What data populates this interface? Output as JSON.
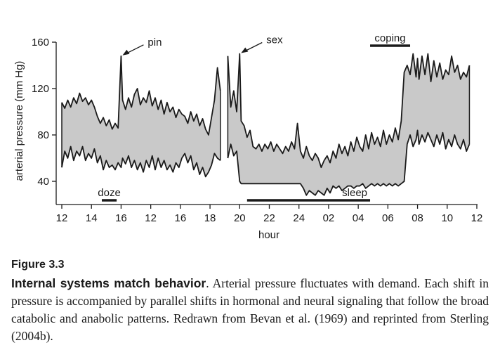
{
  "chart_data": {
    "type": "area",
    "ylabel": "arterial pressure (mm Hg)",
    "xlabel": "hour",
    "ylim": [
      20,
      165
    ],
    "yticks": [
      40,
      80,
      120,
      160
    ],
    "xticks": [
      "12",
      "14",
      "16",
      "12",
      "16",
      "18",
      "20",
      "22",
      "24",
      "02",
      "04",
      "06",
      "08",
      "10",
      "12"
    ],
    "segments": [
      {
        "x": [
          0,
          0.2,
          0.4,
          0.6,
          0.8,
          1.0,
          1.2,
          1.4,
          1.6,
          1.8,
          2.0,
          2.2,
          2.4,
          2.6,
          2.8,
          3.0,
          3.2,
          3.4,
          3.6,
          3.8,
          4.0,
          4.1,
          4.3,
          4.5,
          4.7,
          4.9,
          5.1,
          5.3,
          5.5,
          5.7,
          5.9,
          6.1,
          6.3,
          6.5,
          6.7,
          6.9,
          7.1,
          7.3,
          7.5,
          7.7,
          7.9,
          8.1,
          8.3,
          8.5,
          8.7,
          8.9,
          9.1,
          9.3,
          9.5,
          9.7,
          9.9,
          10.1,
          10.3,
          10.5,
          10.7
        ],
        "systolic": [
          108,
          103,
          110,
          104,
          112,
          107,
          116,
          109,
          112,
          106,
          110,
          104,
          96,
          90,
          95,
          88,
          93,
          85,
          90,
          86,
          148,
          110,
          102,
          112,
          104,
          115,
          120,
          106,
          112,
          108,
          118,
          105,
          112,
          102,
          110,
          98,
          108,
          100,
          104,
          95,
          102,
          98,
          96,
          90,
          100,
          92,
          98,
          88,
          94,
          85,
          80,
          95,
          110,
          138,
          118
        ],
        "diastolic": [
          52,
          66,
          60,
          70,
          58,
          66,
          62,
          70,
          58,
          64,
          60,
          68,
          56,
          62,
          50,
          58,
          52,
          54,
          50,
          56,
          52,
          60,
          55,
          62,
          52,
          58,
          50,
          56,
          48,
          58,
          52,
          62,
          50,
          60,
          52,
          58,
          50,
          54,
          48,
          56,
          52,
          60,
          64,
          56,
          62,
          50,
          56,
          46,
          52,
          44,
          48,
          54,
          64,
          60,
          58
        ]
      },
      {
        "x": [
          11.2,
          11.4,
          11.6,
          11.8,
          12.0,
          12.1,
          12.3,
          12.5,
          12.7,
          12.9,
          13.1,
          13.3,
          13.5,
          13.7,
          13.9,
          14.1,
          14.3,
          14.5,
          14.7,
          14.9,
          15.1,
          15.3,
          15.5,
          15.7,
          15.9,
          16.1,
          16.3,
          16.5,
          16.7,
          16.9,
          17.1,
          17.3,
          17.5,
          17.7,
          17.9,
          18.1,
          18.3,
          18.5,
          18.7,
          18.9,
          19.1,
          19.3,
          19.5,
          19.7,
          19.9,
          20.1,
          20.3,
          20.5,
          20.7,
          20.9,
          21.1,
          21.3,
          21.5,
          21.7,
          21.9,
          22.1,
          22.3,
          22.5,
          22.7,
          22.9,
          23.1,
          23.3,
          23.5,
          23.7,
          23.9,
          24.0,
          24.1,
          24.3,
          24.5,
          24.7,
          24.9,
          25.1,
          25.3,
          25.5,
          25.7,
          25.9,
          26.1,
          26.3,
          26.5,
          26.7,
          26.9,
          27.1,
          27.3,
          27.5
        ],
        "systolic": [
          148,
          104,
          118,
          100,
          150,
          92,
          88,
          78,
          84,
          70,
          68,
          72,
          66,
          72,
          68,
          74,
          66,
          72,
          68,
          64,
          70,
          66,
          74,
          68,
          90,
          66,
          60,
          70,
          62,
          58,
          64,
          60,
          52,
          58,
          62,
          56,
          66,
          60,
          72,
          64,
          70,
          62,
          74,
          66,
          78,
          70,
          66,
          80,
          68,
          82,
          72,
          78,
          70,
          84,
          72,
          80,
          74,
          86,
          76,
          92,
          134,
          140,
          132,
          150,
          130,
          146,
          128,
          148,
          132,
          150,
          126,
          144,
          130,
          142,
          128,
          136,
          132,
          148,
          134,
          140,
          128,
          134,
          130,
          140
        ],
        "diastolic": [
          60,
          72,
          62,
          66,
          40,
          38,
          38,
          38,
          38,
          38,
          38,
          38,
          38,
          38,
          38,
          38,
          38,
          38,
          38,
          38,
          38,
          38,
          38,
          38,
          38,
          38,
          34,
          28,
          32,
          30,
          28,
          32,
          30,
          28,
          34,
          30,
          36,
          34,
          36,
          32,
          34,
          36,
          36,
          34,
          36,
          36,
          38,
          34,
          36,
          38,
          36,
          38,
          36,
          38,
          36,
          38,
          36,
          38,
          36,
          38,
          40,
          72,
          80,
          70,
          76,
          84,
          72,
          80,
          74,
          82,
          76,
          70,
          80,
          72,
          82,
          68,
          76,
          70,
          80,
          72,
          68,
          76,
          66,
          72
        ]
      }
    ],
    "annotations": [
      {
        "text": "pin",
        "x": 4.0,
        "y": 148
      },
      {
        "text": "sex",
        "x": 12.0,
        "y": 150
      }
    ],
    "bars": [
      {
        "label": "doze",
        "x0": 2.7,
        "x1": 3.7
      },
      {
        "label": "sleep",
        "x0": 12.5,
        "x1": 20.8
      },
      {
        "label": "coping",
        "x0": 20.8,
        "x1": 23.5
      }
    ]
  },
  "caption": {
    "figure_number": "Figure 3.3",
    "title_bold": "Internal systems match behavior",
    "body": ". Arterial pressure fluctuates with demand. Each shift in pressure is accompanied by parallel shifts in hormonal and neural signaling that follow the broad catabolic and anabolic patterns. Redrawn from Bevan et al. (1969) and reprinted from Sterling (2004b)."
  },
  "colors": {
    "fill": "#c9c9c9",
    "line": "#1a1a1a"
  }
}
